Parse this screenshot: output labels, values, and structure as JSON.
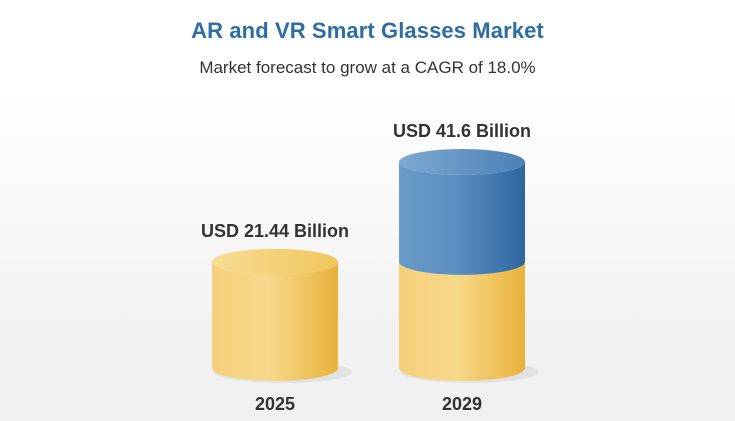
{
  "chart_data": {
    "type": "bar",
    "title": "AR and VR Smart Glasses Market",
    "subtitle": "Market forecast to grow at a CAGR of 18.0%",
    "categories": [
      "2025",
      "2029"
    ],
    "values": [
      21.44,
      41.6
    ],
    "value_labels": [
      "USD 21.44 Billion",
      "USD 41.6 Billion"
    ],
    "unit": "USD Billion",
    "colors": {
      "base": "#f2c44e",
      "growth": "#3d7ab5"
    }
  }
}
